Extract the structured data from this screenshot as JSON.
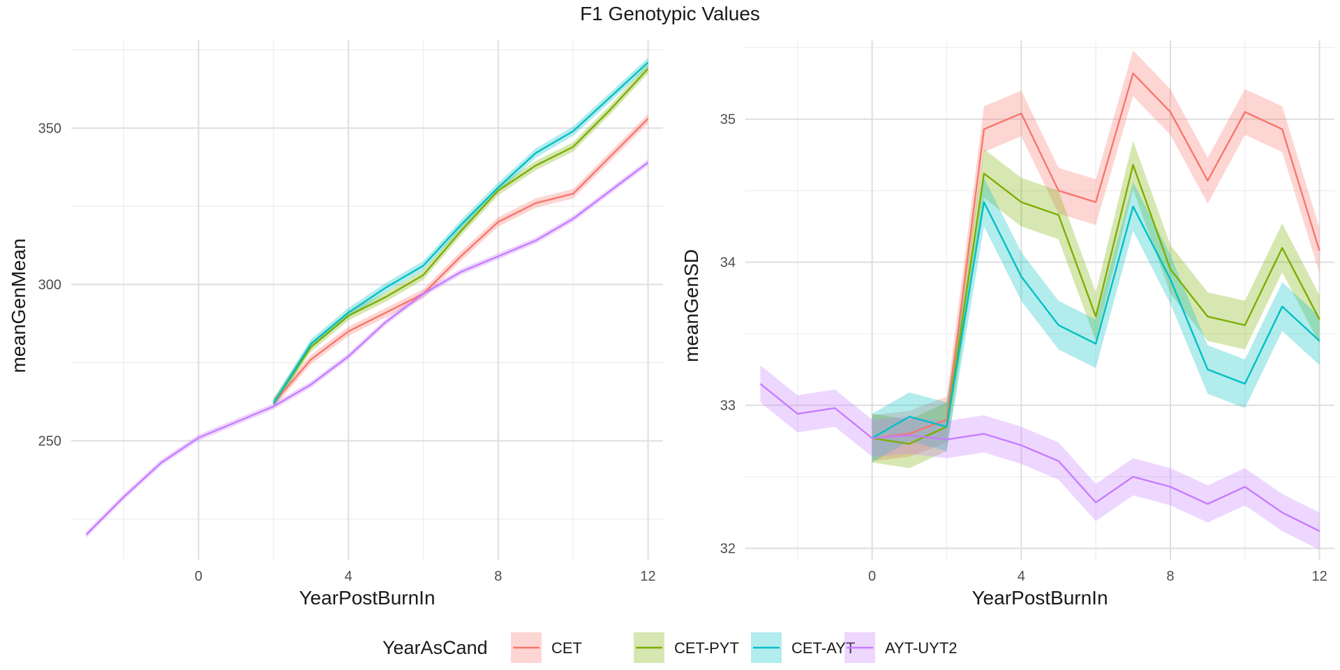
{
  "title": "F1 Genotypic Values",
  "legend": {
    "title": "YearAsCand",
    "placement": "bottom",
    "items": [
      {
        "label": "CET",
        "color": "#F8766D",
        "fill": "#FAD4D2"
      },
      {
        "label": "CET-PYT",
        "color": "#7CAE00",
        "fill": "#DCE9BF"
      },
      {
        "label": "CET-AYT",
        "color": "#00BFC4",
        "fill": "#BFEFF0"
      },
      {
        "label": "AYT-UYT2",
        "color": "#C77CFF",
        "fill": "#EFDEFF"
      }
    ]
  },
  "chart_data": [
    {
      "type": "line",
      "xlabel": "YearPostBurnIn",
      "ylabel": "meanGenMean",
      "xlim": [
        -3.4,
        12.4
      ],
      "ylim": [
        212,
        378
      ],
      "xticks": [
        0,
        4,
        8,
        12
      ],
      "xminor": [
        -2,
        2,
        6,
        10
      ],
      "yticks": [
        250,
        300,
        350
      ],
      "yminor": [
        225,
        275,
        325,
        375
      ],
      "grid": true,
      "series": [
        {
          "name": "CET",
          "x": [
            2,
            3,
            4,
            5,
            6,
            7,
            8,
            9,
            10,
            11,
            12
          ],
          "y": [
            262,
            276,
            285,
            291,
            297,
            309,
            320,
            326,
            329,
            341,
            353
          ],
          "band": 1.5
        },
        {
          "name": "CET-PYT",
          "x": [
            2,
            3,
            4,
            5,
            6,
            7,
            8,
            9,
            10,
            11,
            12
          ],
          "y": [
            262,
            280,
            290,
            296,
            303,
            317,
            330,
            338,
            344,
            356,
            369
          ],
          "band": 1.5
        },
        {
          "name": "CET-AYT",
          "x": [
            2,
            3,
            4,
            5,
            6,
            7,
            8,
            9,
            10,
            11,
            12
          ],
          "y": [
            262,
            281,
            291,
            299,
            306,
            319,
            331,
            342,
            349,
            360,
            371
          ],
          "band": 1.5
        },
        {
          "name": "AYT-UYT2",
          "x": [
            -3,
            -2,
            -1,
            0,
            1,
            2,
            3,
            4,
            5,
            6,
            7,
            8,
            9,
            10,
            11,
            12
          ],
          "y": [
            220,
            232,
            243,
            251,
            256,
            261,
            268,
            277,
            288,
            297,
            304,
            309,
            314,
            321,
            330,
            339
          ],
          "band": 1.0
        }
      ]
    },
    {
      "type": "line",
      "xlabel": "YearPostBurnIn",
      "ylabel": "meanGenSD",
      "xlim": [
        -3.4,
        12.4
      ],
      "ylim": [
        31.92,
        35.55
      ],
      "xticks": [
        0,
        4,
        8,
        12
      ],
      "xminor": [
        -2,
        2,
        6,
        10
      ],
      "yticks": [
        32,
        33,
        34,
        35
      ],
      "yminor": [
        32.5,
        33.5,
        34.5,
        35.5
      ],
      "grid": true,
      "series": [
        {
          "name": "CET",
          "x": [
            0,
            1,
            2,
            3,
            4,
            5,
            6,
            7,
            8,
            9,
            10,
            11,
            12
          ],
          "y": [
            32.77,
            32.8,
            32.9,
            34.93,
            35.04,
            34.5,
            34.42,
            35.32,
            35.05,
            34.57,
            35.05,
            34.93,
            34.08
          ],
          "band": 0.16
        },
        {
          "name": "CET-PYT",
          "x": [
            0,
            1,
            2,
            3,
            4,
            5,
            6,
            7,
            8,
            9,
            10,
            11,
            12
          ],
          "y": [
            32.77,
            32.73,
            32.85,
            34.62,
            34.42,
            34.33,
            33.62,
            34.68,
            33.95,
            33.62,
            33.56,
            34.1,
            33.6
          ],
          "band": 0.17
        },
        {
          "name": "CET-AYT",
          "x": [
            0,
            1,
            2,
            3,
            4,
            5,
            6,
            7,
            8,
            9,
            10,
            11,
            12
          ],
          "y": [
            32.77,
            32.92,
            32.85,
            34.42,
            33.9,
            33.56,
            33.43,
            34.39,
            33.88,
            33.25,
            33.15,
            33.69,
            33.45
          ],
          "band": 0.17
        },
        {
          "name": "AYT-UYT2",
          "x": [
            -3,
            -2,
            -1,
            0,
            1,
            2,
            3,
            4,
            5,
            6,
            7,
            8,
            9,
            10,
            11,
            12
          ],
          "y": [
            33.15,
            32.94,
            32.98,
            32.77,
            32.79,
            32.76,
            32.8,
            32.72,
            32.61,
            32.32,
            32.5,
            32.43,
            32.31,
            32.43,
            32.25,
            32.12
          ],
          "band": 0.13
        }
      ]
    }
  ]
}
